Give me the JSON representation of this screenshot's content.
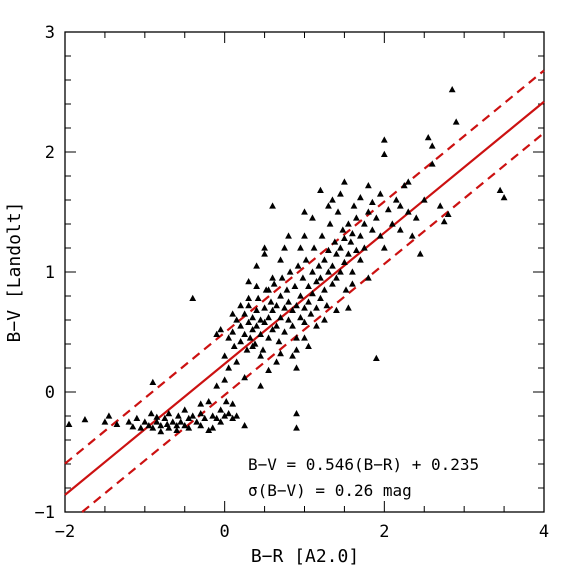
{
  "chart_data": {
    "type": "scatter",
    "xlabel": "B−R [A2.0]",
    "ylabel": "B−V [Landolt]",
    "xlim": [
      -2,
      4
    ],
    "ylim": [
      -1,
      3
    ],
    "x_ticks": [
      "−2",
      "0",
      "2",
      "4"
    ],
    "y_ticks": [
      "−1",
      "0",
      "1",
      "2",
      "3"
    ],
    "grid": false,
    "marker": "triangle",
    "colors": {
      "points": "#000000",
      "fit": "#cc1111"
    },
    "fit": {
      "slope": 0.546,
      "intercept": 0.235,
      "sigma": 0.26
    },
    "annotations": [
      "B−V = 0.546(B−R) + 0.235",
      "σ(B−V) = 0.26 mag"
    ],
    "points": [
      [
        -1.95,
        -0.27
      ],
      [
        -1.75,
        -0.23
      ],
      [
        -1.5,
        -0.25
      ],
      [
        -1.45,
        -0.2
      ],
      [
        -1.35,
        -0.27
      ],
      [
        -1.2,
        -0.25
      ],
      [
        -1.15,
        -0.29
      ],
      [
        -1.1,
        -0.22
      ],
      [
        -1.05,
        -0.3
      ],
      [
        -1.0,
        -0.25
      ],
      [
        -0.95,
        -0.28
      ],
      [
        -0.92,
        -0.18
      ],
      [
        -0.9,
        -0.3
      ],
      [
        -0.9,
        0.08
      ],
      [
        -0.85,
        -0.25
      ],
      [
        -0.85,
        -0.21
      ],
      [
        -0.8,
        -0.28
      ],
      [
        -0.8,
        -0.33
      ],
      [
        -0.75,
        -0.22
      ],
      [
        -0.72,
        -0.27
      ],
      [
        -0.7,
        -0.3
      ],
      [
        -0.7,
        -0.18
      ],
      [
        -0.65,
        -0.25
      ],
      [
        -0.6,
        -0.32
      ],
      [
        -0.6,
        -0.28
      ],
      [
        -0.58,
        -0.2
      ],
      [
        -0.55,
        -0.25
      ],
      [
        -0.5,
        -0.28
      ],
      [
        -0.5,
        -0.15
      ],
      [
        -0.45,
        -0.22
      ],
      [
        -0.45,
        -0.3
      ],
      [
        -0.4,
        -0.2
      ],
      [
        -0.35,
        -0.25
      ],
      [
        -0.3,
        -0.18
      ],
      [
        -0.3,
        -0.28
      ],
      [
        -0.25,
        -0.22
      ],
      [
        -0.2,
        -0.32
      ],
      [
        -0.15,
        -0.3
      ],
      [
        -0.15,
        -0.2
      ],
      [
        -0.1,
        -0.22
      ],
      [
        -0.1,
        0.05
      ],
      [
        -0.05,
        -0.25
      ],
      [
        -0.05,
        -0.15
      ],
      [
        0.0,
        -0.2
      ],
      [
        0.02,
        -0.08
      ],
      [
        0.05,
        -0.18
      ],
      [
        0.1,
        -0.22
      ],
      [
        0.1,
        -0.1
      ],
      [
        0.15,
        -0.2
      ],
      [
        -0.3,
        -0.1
      ],
      [
        -0.2,
        -0.08
      ],
      [
        -0.4,
        0.78
      ],
      [
        -0.05,
        0.52
      ],
      [
        0.0,
        0.1
      ],
      [
        0.05,
        0.2
      ],
      [
        -0.1,
        0.48
      ],
      [
        0.0,
        0.3
      ],
      [
        0.05,
        0.45
      ],
      [
        0.1,
        0.5
      ],
      [
        0.12,
        0.38
      ],
      [
        0.15,
        0.6
      ],
      [
        0.2,
        0.42
      ],
      [
        0.2,
        0.55
      ],
      [
        0.25,
        0.48
      ],
      [
        0.25,
        0.65
      ],
      [
        0.28,
        0.35
      ],
      [
        0.3,
        0.58
      ],
      [
        0.3,
        0.72
      ],
      [
        0.32,
        0.45
      ],
      [
        0.35,
        0.52
      ],
      [
        0.35,
        0.62
      ],
      [
        0.38,
        0.4
      ],
      [
        0.4,
        0.68
      ],
      [
        0.4,
        0.55
      ],
      [
        0.42,
        0.78
      ],
      [
        0.45,
        0.48
      ],
      [
        0.45,
        0.6
      ],
      [
        0.48,
        0.35
      ],
      [
        0.5,
        0.7
      ],
      [
        0.5,
        0.58
      ],
      [
        0.52,
        0.85
      ],
      [
        0.55,
        0.45
      ],
      [
        0.55,
        0.62
      ],
      [
        0.58,
        0.75
      ],
      [
        0.6,
        0.52
      ],
      [
        0.6,
        0.68
      ],
      [
        0.62,
        0.9
      ],
      [
        0.65,
        0.55
      ],
      [
        0.65,
        0.72
      ],
      [
        0.68,
        0.42
      ],
      [
        0.7,
        0.8
      ],
      [
        0.7,
        0.62
      ],
      [
        0.72,
        0.95
      ],
      [
        0.75,
        0.5
      ],
      [
        0.75,
        0.7
      ],
      [
        0.78,
        0.85
      ],
      [
        0.8,
        0.6
      ],
      [
        0.8,
        0.75
      ],
      [
        0.82,
        1.0
      ],
      [
        0.85,
        0.55
      ],
      [
        0.85,
        0.68
      ],
      [
        0.88,
        0.88
      ],
      [
        0.9,
        0.72
      ],
      [
        0.9,
        0.45
      ],
      [
        0.92,
        1.05
      ],
      [
        0.95,
        0.62
      ],
      [
        0.95,
        0.8
      ],
      [
        0.98,
        0.95
      ],
      [
        1.0,
        0.7
      ],
      [
        1.0,
        0.58
      ],
      [
        1.02,
        1.1
      ],
      [
        1.05,
        0.75
      ],
      [
        1.05,
        0.88
      ],
      [
        1.08,
        0.65
      ],
      [
        1.1,
        1.0
      ],
      [
        1.1,
        0.82
      ],
      [
        1.12,
        1.2
      ],
      [
        1.15,
        0.7
      ],
      [
        1.15,
        0.92
      ],
      [
        1.18,
        1.05
      ],
      [
        1.2,
        0.78
      ],
      [
        1.2,
        0.95
      ],
      [
        1.22,
        1.3
      ],
      [
        1.25,
        0.85
      ],
      [
        1.25,
        1.1
      ],
      [
        1.28,
        0.72
      ],
      [
        1.3,
        1.0
      ],
      [
        1.3,
        1.18
      ],
      [
        1.32,
        1.4
      ],
      [
        1.35,
        0.9
      ],
      [
        1.35,
        1.05
      ],
      [
        1.38,
        1.25
      ],
      [
        1.4,
        0.95
      ],
      [
        1.4,
        1.15
      ],
      [
        1.42,
        1.5
      ],
      [
        1.45,
        1.0
      ],
      [
        1.45,
        1.2
      ],
      [
        1.48,
        1.35
      ],
      [
        1.5,
        1.08
      ],
      [
        1.5,
        1.28
      ],
      [
        1.52,
        0.85
      ],
      [
        1.55,
        1.15
      ],
      [
        1.55,
        1.4
      ],
      [
        1.58,
        1.25
      ],
      [
        1.6,
        1.0
      ],
      [
        1.6,
        1.32
      ],
      [
        1.62,
        1.55
      ],
      [
        1.65,
        1.18
      ],
      [
        1.65,
        1.45
      ],
      [
        1.7,
        1.3
      ],
      [
        1.7,
        1.62
      ],
      [
        1.75,
        1.2
      ],
      [
        1.75,
        1.4
      ],
      [
        1.8,
        1.5
      ],
      [
        1.8,
        1.72
      ],
      [
        1.85,
        1.35
      ],
      [
        1.85,
        1.58
      ],
      [
        1.9,
        1.45
      ],
      [
        1.9,
        0.28
      ],
      [
        1.95,
        1.65
      ],
      [
        1.95,
        1.3
      ],
      [
        2.0,
        2.1
      ],
      [
        2.0,
        1.98
      ],
      [
        2.05,
        1.52
      ],
      [
        2.1,
        1.4
      ],
      [
        2.15,
        1.6
      ],
      [
        2.2,
        1.35
      ],
      [
        2.25,
        1.72
      ],
      [
        2.3,
        1.5
      ],
      [
        2.35,
        1.3
      ],
      [
        2.4,
        1.45
      ],
      [
        2.45,
        1.15
      ],
      [
        2.5,
        1.6
      ],
      [
        2.55,
        2.12
      ],
      [
        2.6,
        2.05
      ],
      [
        2.6,
        1.9
      ],
      [
        2.7,
        1.55
      ],
      [
        2.75,
        1.42
      ],
      [
        2.8,
        1.48
      ],
      [
        2.85,
        2.52
      ],
      [
        2.9,
        2.25
      ],
      [
        3.45,
        1.68
      ],
      [
        3.5,
        1.62
      ],
      [
        2.3,
        1.75
      ],
      [
        1.5,
        1.75
      ],
      [
        1.2,
        1.68
      ],
      [
        1.0,
        1.5
      ],
      [
        0.6,
        1.55
      ],
      [
        0.8,
        1.3
      ],
      [
        0.5,
        1.2
      ],
      [
        0.4,
        1.05
      ],
      [
        0.3,
        0.92
      ],
      [
        0.3,
        0.78
      ],
      [
        0.2,
        0.72
      ],
      [
        0.1,
        0.65
      ],
      [
        0.9,
        0.2
      ],
      [
        0.9,
        -0.18
      ],
      [
        0.9,
        -0.3
      ],
      [
        0.9,
        0.35
      ],
      [
        0.55,
        0.18
      ],
      [
        0.45,
        0.3
      ],
      [
        0.65,
        0.25
      ],
      [
        0.35,
        0.38
      ],
      [
        0.7,
        0.32
      ],
      [
        0.25,
        -0.28
      ],
      [
        0.5,
        1.15
      ],
      [
        0.7,
        1.1
      ],
      [
        1.0,
        1.3
      ],
      [
        1.1,
        1.45
      ],
      [
        1.3,
        1.55
      ],
      [
        1.15,
        0.55
      ],
      [
        1.25,
        0.6
      ],
      [
        1.0,
        0.45
      ],
      [
        1.05,
        0.38
      ],
      [
        0.85,
        0.3
      ],
      [
        1.4,
        0.68
      ],
      [
        1.55,
        0.7
      ],
      [
        1.7,
        1.1
      ],
      [
        1.6,
        0.9
      ],
      [
        2.0,
        1.2
      ],
      [
        2.2,
        1.55
      ],
      [
        1.8,
        0.95
      ],
      [
        0.6,
        0.95
      ],
      [
        0.55,
        0.85
      ],
      [
        0.4,
        0.88
      ],
      [
        0.75,
        1.2
      ],
      [
        0.95,
        1.2
      ],
      [
        1.35,
        1.6
      ],
      [
        1.45,
        1.65
      ],
      [
        0.15,
        0.25
      ],
      [
        0.45,
        0.05
      ],
      [
        0.25,
        0.12
      ]
    ]
  }
}
